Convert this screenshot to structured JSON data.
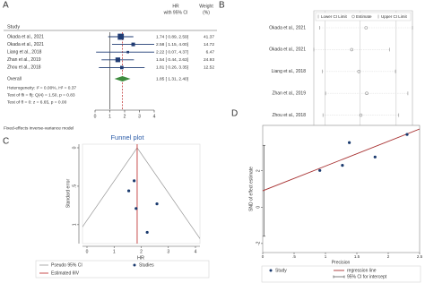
{
  "chart_data": [
    {
      "type": "forest",
      "panel": "A",
      "header": {
        "study": "Study",
        "hr": [
          "HR",
          "with 95% CI"
        ],
        "weight": [
          "Weight",
          "(%)"
        ]
      },
      "categories": [
        "Okada et al., 2021",
        "Okada et al., 2021",
        "Liang et al., 2018",
        "Zhan et al., 2019",
        "Zhou et al., 2018"
      ],
      "values": [
        1.74,
        2.58,
        2.22,
        1.54,
        1.81
      ],
      "lower": [
        0.89,
        1.15,
        0.07,
        0.44,
        0.26
      ],
      "upper": [
        2.59,
        4.0,
        4.37,
        2.63,
        3.35
      ],
      "value_labels": [
        "1.74 [  0.89,  2.59]",
        "2.58 [  1.15,  4.00]",
        "2.22 [  0.07,  4.37]",
        "1.54 [  0.44,  2.63]",
        "1.81 [  0.26,  3.35]"
      ],
      "weights": [
        41.37,
        14.72,
        6.47,
        24.93,
        12.52
      ],
      "overall": {
        "label": "Overall",
        "value": 1.85,
        "lower": 1.31,
        "upper": 2.4,
        "value_label": "1.85 [  1.31,  2.40]"
      },
      "notes": [
        "Heterogeneity: I² = 0.00%, H² = 0.37",
        "Test of θi = θj: Q(4) = 1.50, p = 0.83",
        "Test of θ = 0: z = 6.65, p = 0.00"
      ],
      "footnote": "Fixed-effects inverse-variance model",
      "reference_line": 1,
      "xlim": [
        0,
        4
      ],
      "xticks": [
        0,
        1,
        2,
        3,
        4
      ],
      "color": "#1f3b73",
      "overall_color": "#3d8b3d",
      "line_color": "#c23b3b"
    },
    {
      "type": "sensitivity",
      "panel": "B",
      "categories": [
        "Okada et al., 2021",
        "Okada et al., 2021",
        "Liang et al., 2018",
        "Zhan et al., 2019",
        "Zhou et al., 2018"
      ],
      "values": [
        1.94,
        1.72,
        1.83,
        1.95,
        1.86
      ],
      "lower": [
        1.23,
        1.14,
        1.27,
        1.32,
        1.28
      ],
      "upper": [
        2.65,
        2.3,
        2.39,
        2.58,
        2.44
      ],
      "legend": [
        "Lower CI Limit",
        "Estimate",
        "Upper CI Limit"
      ],
      "xlim": [
        1.14,
        2.65
      ],
      "xticks": [
        1.14,
        1.31,
        1.85,
        {
          "value": 2.4,
          "label": "2.40"
        },
        2.65
      ],
      "grid": true,
      "color": "#999999"
    },
    {
      "type": "funnel",
      "panel": "C",
      "title": "Funnel plot",
      "xlabel": "HR",
      "ylabel": "Standard error",
      "x": [
        1.74,
        2.58,
        2.22,
        1.54,
        1.81
      ],
      "values": [
        0.43,
        0.73,
        1.1,
        0.56,
        0.79
      ],
      "theta": 1.85,
      "xlim": [
        0,
        4
      ],
      "xticks": [
        0,
        1,
        2,
        3,
        4
      ],
      "ylim": [
        0,
        1.2
      ],
      "yticks": [
        0,
        {
          "value": 0.5,
          "label": ".5"
        },
        1
      ],
      "y_inverted": true,
      "legend": [
        "Pseudo 95% CI",
        "Studies",
        "Estimated θIV"
      ],
      "color": "#1a3a6e",
      "theta_color": "#c23b3b",
      "title_color": "#2b5ca8"
    },
    {
      "type": "galbraith",
      "panel": "D",
      "xlabel": "Precision",
      "ylabel": "SND of effect estimate",
      "point_name": "Study",
      "x": [
        2.3,
        1.38,
        0.91,
        1.79,
        1.27
      ],
      "values": [
        4.0,
        3.55,
        2.02,
        2.76,
        2.3
      ],
      "series": [
        {
          "name": "regression line",
          "x": [
            0,
            2.5
          ],
          "values": [
            0.9,
            4.3
          ],
          "color": "#a83232"
        }
      ],
      "ci_name": "95% CI for intercept",
      "ci_intercept": [
        -1.6,
        3.4
      ],
      "xlim": [
        0,
        2.5
      ],
      "xticks": [
        0,
        {
          "value": 0.5,
          "label": ".5"
        },
        1,
        1.5,
        2,
        2.5
      ],
      "ylim": [
        -2.5,
        4.5
      ],
      "yticks": [
        -2,
        0,
        2
      ],
      "color": "#1a3a6e"
    }
  ]
}
